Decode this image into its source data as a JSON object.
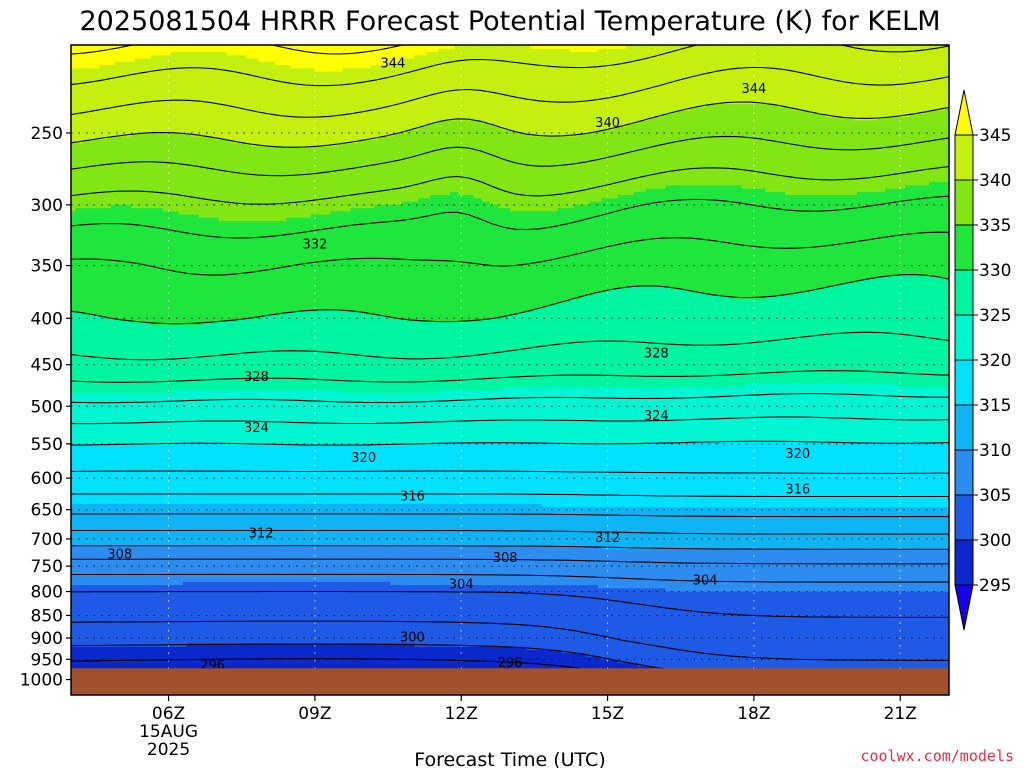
{
  "chart_data": {
    "type": "heatmap",
    "title": "2025081504 HRRR Forecast Potential Temperature (K) for KELM",
    "xlabel": "Forecast Time (UTC)",
    "ylabel": "",
    "credit": "coolwx.com/models",
    "x_ticks": [
      {
        "label": "06Z",
        "hour": 6,
        "sub1": "15AUG",
        "sub2": "2025"
      },
      {
        "label": "09Z",
        "hour": 9
      },
      {
        "label": "12Z",
        "hour": 12
      },
      {
        "label": "15Z",
        "hour": 15
      },
      {
        "label": "18Z",
        "hour": 18
      },
      {
        "label": "21Z",
        "hour": 21
      }
    ],
    "xlim": [
      4,
      22
    ],
    "y_ticks": [
      1000,
      950,
      900,
      850,
      800,
      750,
      700,
      650,
      600,
      550,
      500,
      450,
      400,
      350,
      300,
      250
    ],
    "ylim": [
      1040,
      200
    ],
    "y_scale": "log",
    "grid": true,
    "colorbar": {
      "levels": [
        295,
        300,
        305,
        310,
        315,
        320,
        325,
        330,
        335,
        340,
        345
      ],
      "colors": [
        "#1a00e6",
        "#0a28cc",
        "#1e5ae6",
        "#2d8cf0",
        "#0fb4f5",
        "#00e1ff",
        "#00f5d2",
        "#00f5a0",
        "#1ee63c",
        "#82e614",
        "#c3f00f",
        "#ffff00"
      ],
      "extend": "both"
    },
    "terrain_color": "#a0522d",
    "terrain_top_hpa": 972,
    "contour_interval": 2,
    "contour_labels": [
      {
        "text": "344",
        "hour": 10.6,
        "hpa": 209
      },
      {
        "text": "344",
        "hour": 18.0,
        "hpa": 223
      },
      {
        "text": "340",
        "hour": 15.0,
        "hpa": 243
      },
      {
        "text": "332",
        "hour": 9.0,
        "hpa": 331
      },
      {
        "text": "328",
        "hour": 7.8,
        "hpa": 463
      },
      {
        "text": "328",
        "hour": 16.0,
        "hpa": 436
      },
      {
        "text": "324",
        "hour": 7.8,
        "hpa": 527
      },
      {
        "text": "324",
        "hour": 16.0,
        "hpa": 511
      },
      {
        "text": "320",
        "hour": 10.0,
        "hpa": 569
      },
      {
        "text": "320",
        "hour": 18.9,
        "hpa": 563
      },
      {
        "text": "316",
        "hour": 11.0,
        "hpa": 627
      },
      {
        "text": "316",
        "hour": 18.9,
        "hpa": 616
      },
      {
        "text": "312",
        "hour": 7.9,
        "hpa": 689
      },
      {
        "text": "312",
        "hour": 15.0,
        "hpa": 697
      },
      {
        "text": "308",
        "hour": 5.0,
        "hpa": 726
      },
      {
        "text": "308",
        "hour": 12.9,
        "hpa": 733
      },
      {
        "text": "304",
        "hour": 12.0,
        "hpa": 784
      },
      {
        "text": "304",
        "hour": 17.0,
        "hpa": 776
      },
      {
        "text": "300",
        "hour": 11.0,
        "hpa": 897
      },
      {
        "text": "296",
        "hour": 6.9,
        "hpa": 963
      },
      {
        "text": "296",
        "hour": 13.0,
        "hpa": 956
      }
    ]
  }
}
